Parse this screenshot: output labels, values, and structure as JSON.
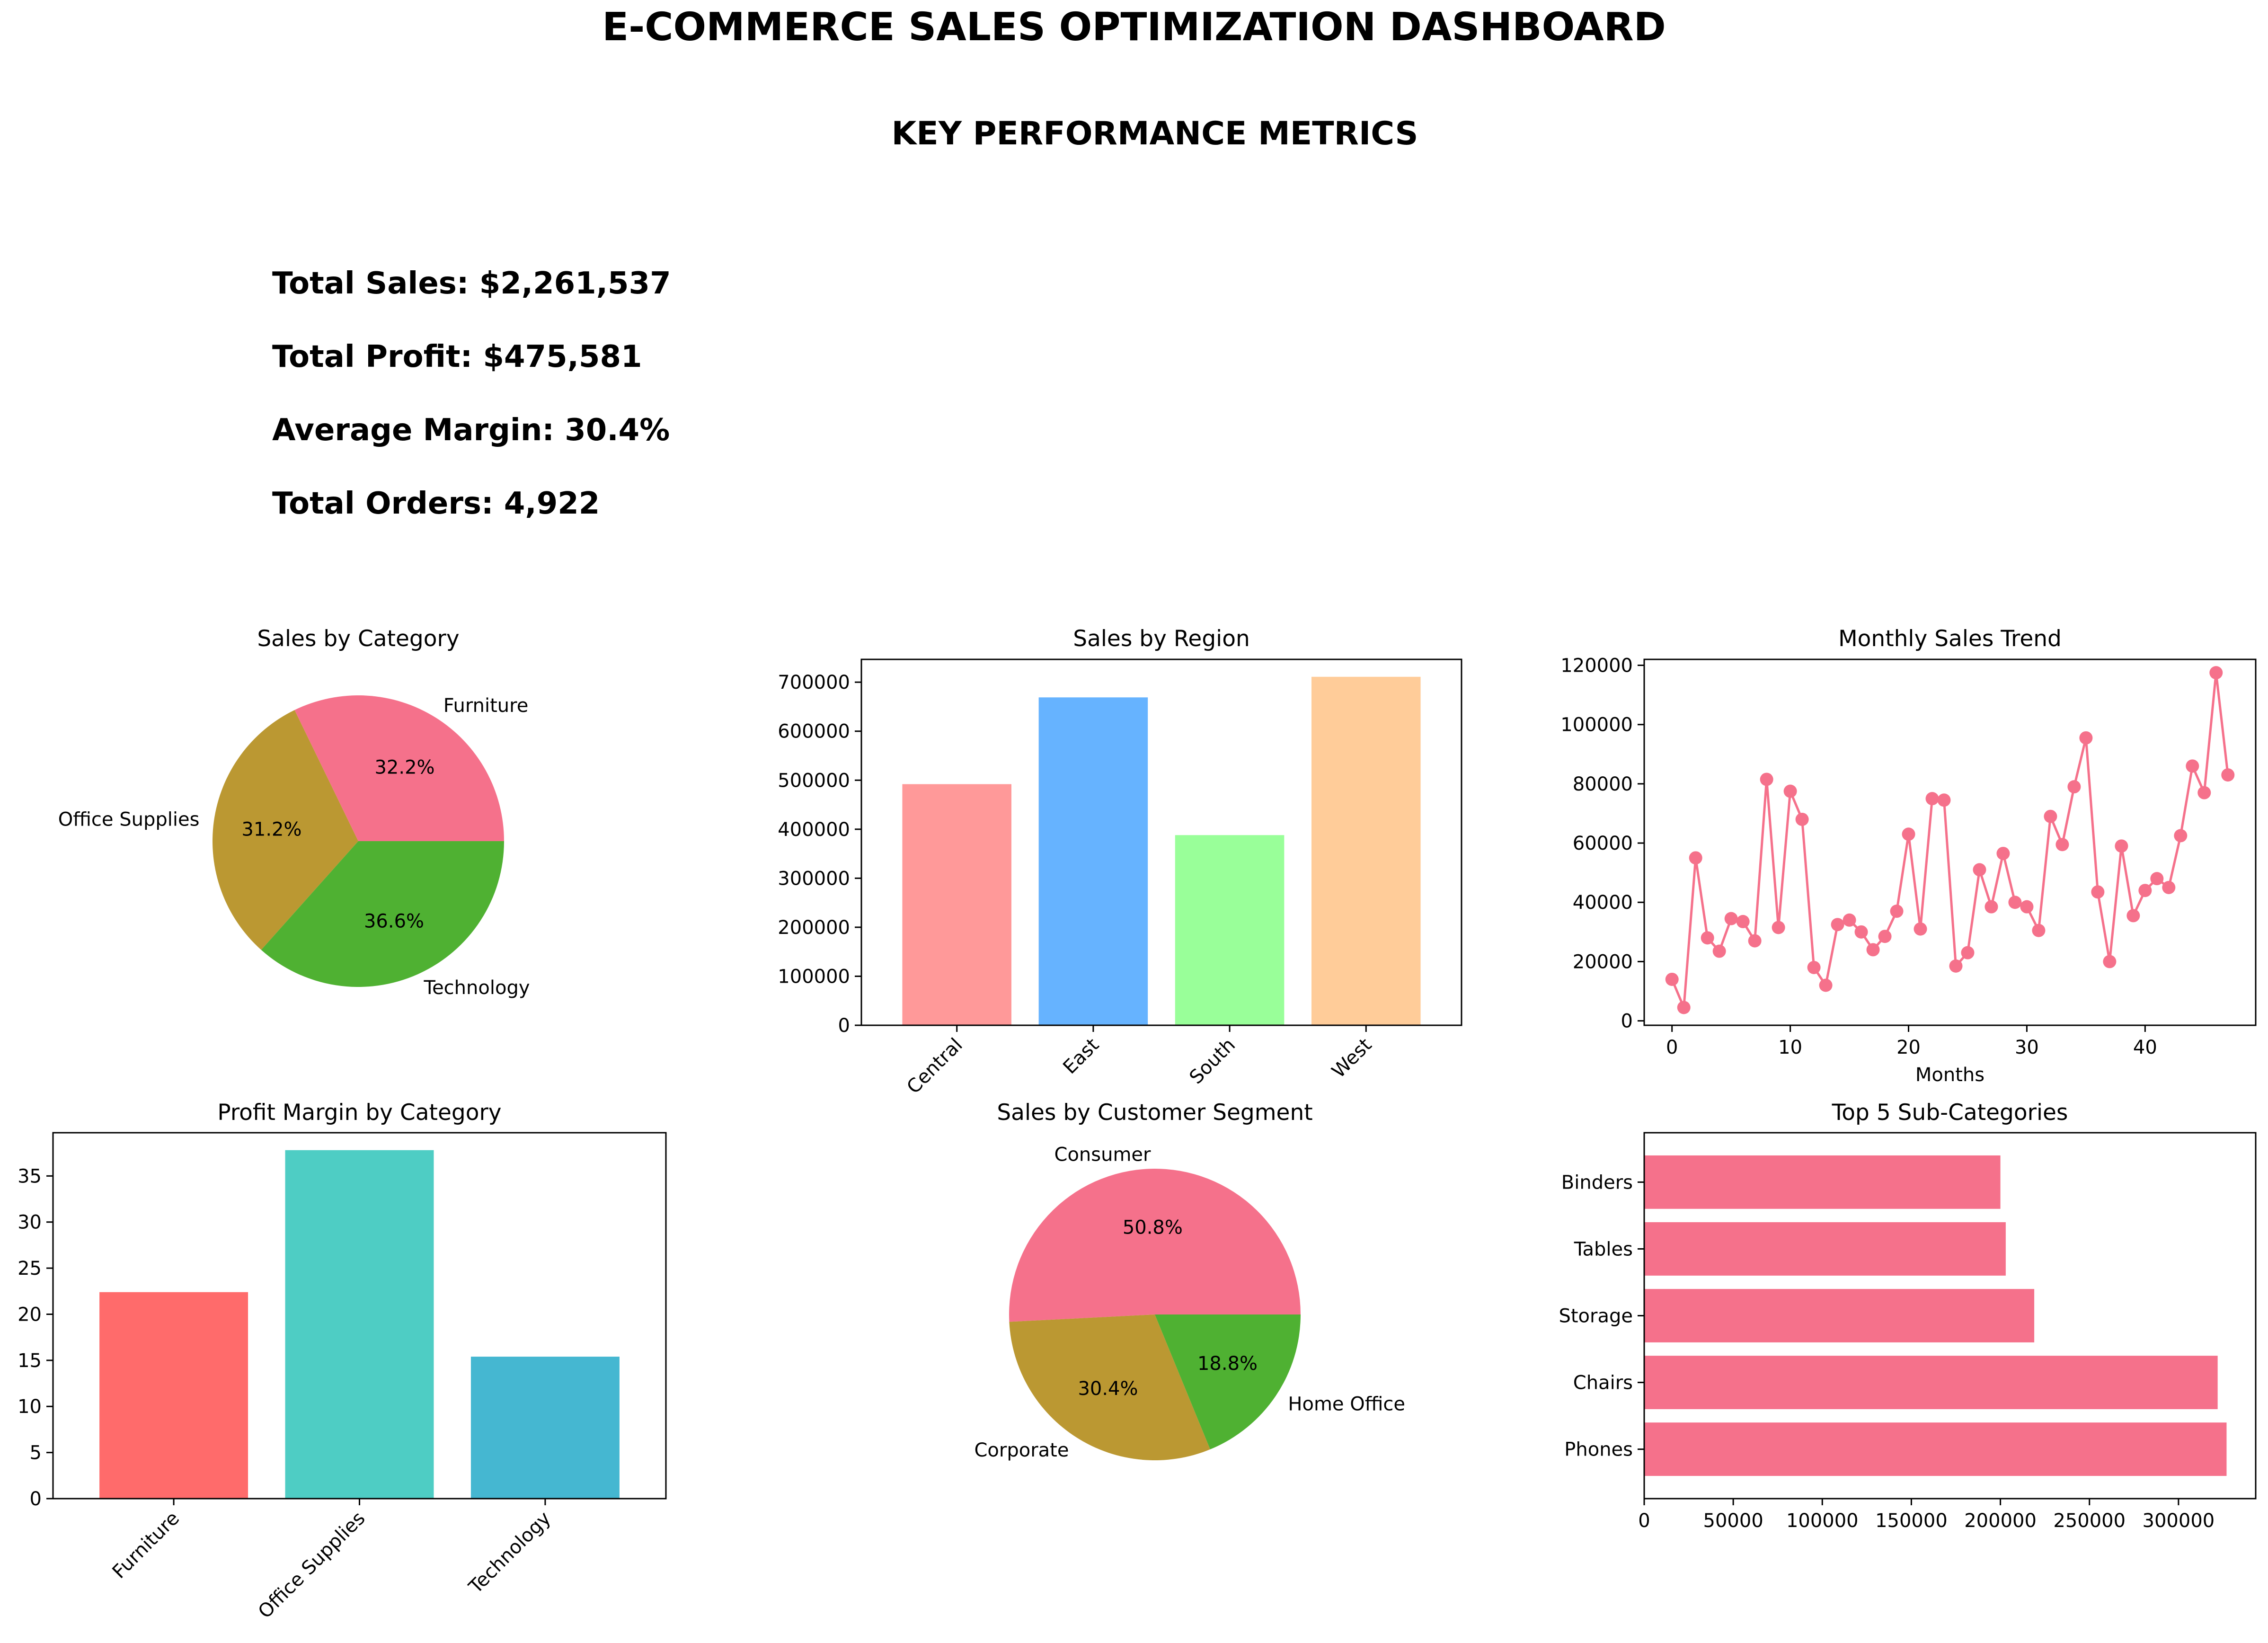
{
  "header": {
    "title": "E-COMMERCE SALES OPTIMIZATION DASHBOARD",
    "subtitle": "KEY PERFORMANCE METRICS"
  },
  "kpis": [
    {
      "label": "Total Sales",
      "value": "$2,261,537",
      "text": "Total Sales: $2,261,537"
    },
    {
      "label": "Total Profit",
      "value": "$475,581",
      "text": "Total Profit: $475,581"
    },
    {
      "label": "Average Margin",
      "value": "30.4%",
      "text": "Average Margin: 30.4%"
    },
    {
      "label": "Total Orders",
      "value": "4,922",
      "text": "Total Orders: 4,922"
    }
  ],
  "chart_data": [
    {
      "id": "sales-by-category",
      "type": "pie",
      "title": "Sales by Category",
      "labels": [
        "Furniture",
        "Office Supplies",
        "Technology"
      ],
      "values": [
        32.2,
        31.2,
        36.6
      ],
      "pct_labels": [
        "32.2%",
        "31.2%",
        "36.6%"
      ],
      "colors": [
        "#f5718b",
        "#bb9832",
        "#4fb132"
      ]
    },
    {
      "id": "sales-by-region",
      "type": "bar",
      "title": "Sales by Region",
      "categories": [
        "Central",
        "East",
        "South",
        "West"
      ],
      "values": [
        492000,
        669000,
        388000,
        711000
      ],
      "ylim": [
        0,
        746550
      ],
      "yticks": [
        0,
        100000,
        200000,
        300000,
        400000,
        500000,
        600000,
        700000
      ],
      "colors": [
        "#ff9999",
        "#66b3ff",
        "#99ff99",
        "#ffcc99"
      ]
    },
    {
      "id": "monthly-sales-trend",
      "type": "line",
      "title": "Monthly Sales Trend",
      "xlabel": "Months",
      "x": [
        0,
        1,
        2,
        3,
        4,
        5,
        6,
        7,
        8,
        9,
        10,
        11,
        12,
        13,
        14,
        15,
        16,
        17,
        18,
        19,
        20,
        21,
        22,
        23,
        24,
        25,
        26,
        27,
        28,
        29,
        30,
        31,
        32,
        33,
        34,
        35,
        36,
        37,
        38,
        39,
        40,
        41,
        42,
        43,
        44,
        45,
        46,
        47
      ],
      "values": [
        14000,
        4500,
        55000,
        28000,
        23500,
        34500,
        33500,
        27000,
        81500,
        31500,
        77500,
        68000,
        18000,
        12000,
        32500,
        34000,
        30000,
        24000,
        28500,
        37000,
        63000,
        31000,
        75000,
        74500,
        18500,
        23000,
        51000,
        38500,
        56500,
        40000,
        38500,
        30500,
        69000,
        59500,
        79000,
        95500,
        43500,
        20000,
        59000,
        35500,
        44000,
        48000,
        45000,
        62500,
        86000,
        77000,
        117500,
        83000
      ],
      "xlim": [
        -2.35,
        49.35
      ],
      "ylim": [
        -1500,
        122000
      ],
      "xticks": [
        0,
        10,
        20,
        30,
        40
      ],
      "yticks": [
        0,
        20000,
        40000,
        60000,
        80000,
        100000,
        120000
      ],
      "color": "#f5718b"
    },
    {
      "id": "profit-margin-by-category",
      "type": "bar",
      "title": "Profit Margin by Category",
      "categories": [
        "Furniture",
        "Office Supplies",
        "Technology"
      ],
      "values": [
        22.4,
        37.8,
        15.4
      ],
      "ylim": [
        0,
        39.69
      ],
      "yticks": [
        0,
        5,
        10,
        15,
        20,
        25,
        30,
        35
      ],
      "colors": [
        "#ff6b6b",
        "#4ecdc4",
        "#45b7d1"
      ]
    },
    {
      "id": "sales-by-customer-segment",
      "type": "pie",
      "title": "Sales by Customer Segment",
      "labels": [
        "Consumer",
        "Corporate",
        "Home Office"
      ],
      "values": [
        50.8,
        30.4,
        18.8
      ],
      "pct_labels": [
        "50.8%",
        "30.4%",
        "18.8%"
      ],
      "colors": [
        "#f5718b",
        "#bb9832",
        "#4fb132"
      ]
    },
    {
      "id": "top-5-sub-categories",
      "type": "bar",
      "orientation": "horizontal",
      "title": "Top 5 Sub-Categories",
      "categories": [
        "Phones",
        "Chairs",
        "Storage",
        "Tables",
        "Binders"
      ],
      "values": [
        327000,
        322000,
        219000,
        203000,
        200000
      ],
      "xlim": [
        0,
        343350
      ],
      "xticks": [
        0,
        50000,
        100000,
        150000,
        200000,
        250000,
        300000
      ],
      "color": "#f5718b"
    }
  ]
}
